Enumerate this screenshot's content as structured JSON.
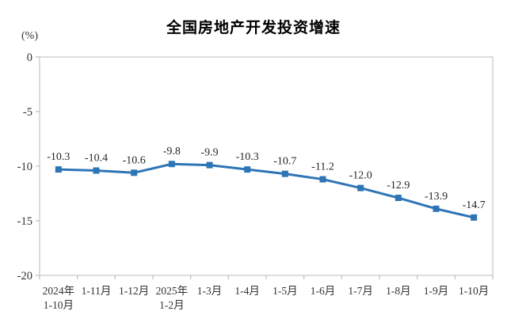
{
  "chart_data": {
    "type": "line",
    "title": "全国房地产开发投资增速",
    "unit": "(%)",
    "categories": [
      "2024年\n1-10月",
      "1-11月",
      "1-12月",
      "2025年\n1-2月",
      "1-3月",
      "1-4月",
      "1-5月",
      "1-6月",
      "1-7月",
      "1-8月",
      "1-9月",
      "1-10月"
    ],
    "values": [
      -10.3,
      -10.4,
      -10.6,
      -9.8,
      -9.9,
      -10.3,
      -10.7,
      -11.2,
      -12.0,
      -12.9,
      -13.9,
      -14.7
    ],
    "data_labels": [
      "-10.3",
      "-10.4",
      "-10.6",
      "-9.8",
      "-9.9",
      "-10.3",
      "-10.7",
      "-11.2",
      "-12.0",
      "-12.9",
      "-13.9",
      "-14.7"
    ],
    "ylim": [
      -20,
      0
    ],
    "yticks": [
      0,
      -5,
      -10,
      -15,
      -20
    ],
    "grid": false,
    "legend": "none",
    "series_name": "全国房地产开发投资增速",
    "line_color": "#2E75B6",
    "marker": "square",
    "axis_color": "#C6C6C6",
    "tick_color": "#BDBDBD",
    "text_color": "#333333",
    "data_label_color": "#262626"
  }
}
